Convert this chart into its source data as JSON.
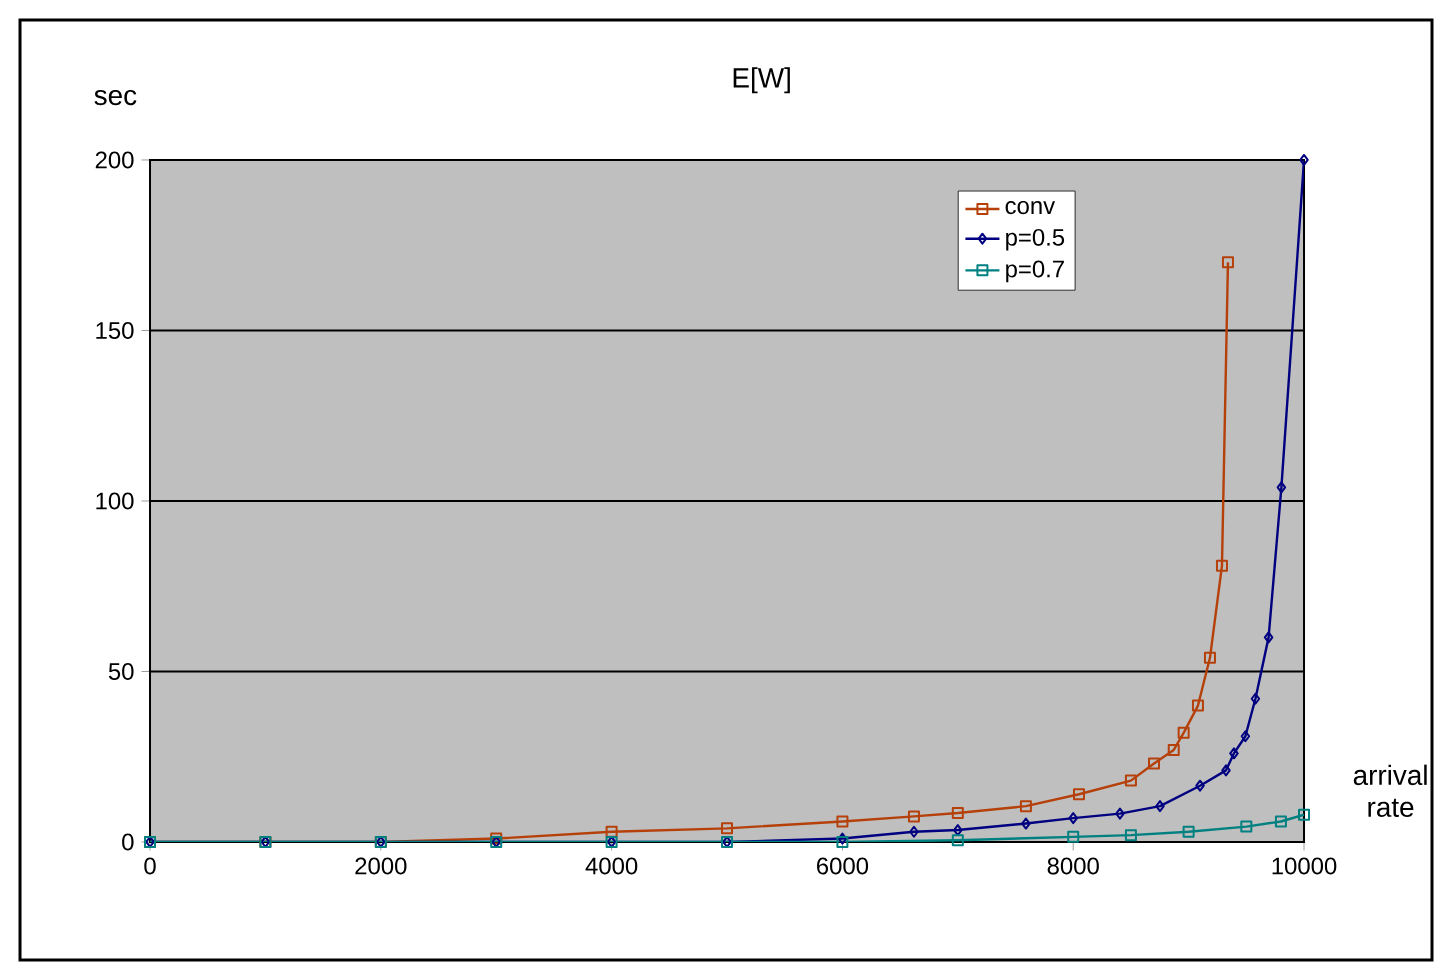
{
  "chart_data": {
    "type": "line",
    "title": "E[W]",
    "ylabel": "sec",
    "xlabel": "arrival rate",
    "xlim": [
      0,
      10000
    ],
    "ylim": [
      0,
      200
    ],
    "xticks": [
      0,
      2000,
      4000,
      6000,
      8000,
      10000
    ],
    "yticks": [
      0,
      50,
      100,
      150,
      200
    ],
    "grid": "y",
    "legend": "top right",
    "series": [
      {
        "name": "conv",
        "color": "#b5400a",
        "marker": "square",
        "x": [
          0,
          1000,
          2000,
          3000,
          4000,
          5000,
          6000,
          6620,
          7000,
          7590,
          8050,
          8500,
          8700,
          8871,
          8957,
          9081,
          9185,
          9289,
          9341
        ],
        "values": [
          0,
          0,
          0,
          1,
          3,
          4,
          6,
          7.5,
          8.5,
          10.5,
          14,
          18,
          23,
          27,
          32,
          40,
          54,
          81,
          170
        ]
      },
      {
        "name": "p=0.5",
        "color": "#000080",
        "marker": "diamond",
        "x": [
          0,
          1000,
          2000,
          3000,
          4000,
          5000,
          6000,
          6620,
          7000,
          7590,
          8000,
          8405,
          8752,
          9099,
          9324,
          9393,
          9492,
          9579,
          9693,
          9804,
          10000
        ],
        "values": [
          0,
          0,
          0,
          0,
          0,
          0,
          1,
          3,
          3.5,
          5.4,
          7,
          8.3,
          10.5,
          16.5,
          21,
          26,
          31,
          42,
          60,
          104,
          200
        ]
      },
      {
        "name": "p=0.7",
        "color": "#008080",
        "marker": "square",
        "x": [
          0,
          1000,
          2000,
          3000,
          4000,
          5000,
          6000,
          7000,
          8000,
          8500,
          9000,
          9500,
          9800,
          10000
        ],
        "values": [
          0,
          0,
          0,
          0,
          0,
          0,
          0,
          0.5,
          1.5,
          2,
          3,
          4.5,
          6,
          8
        ]
      }
    ]
  }
}
